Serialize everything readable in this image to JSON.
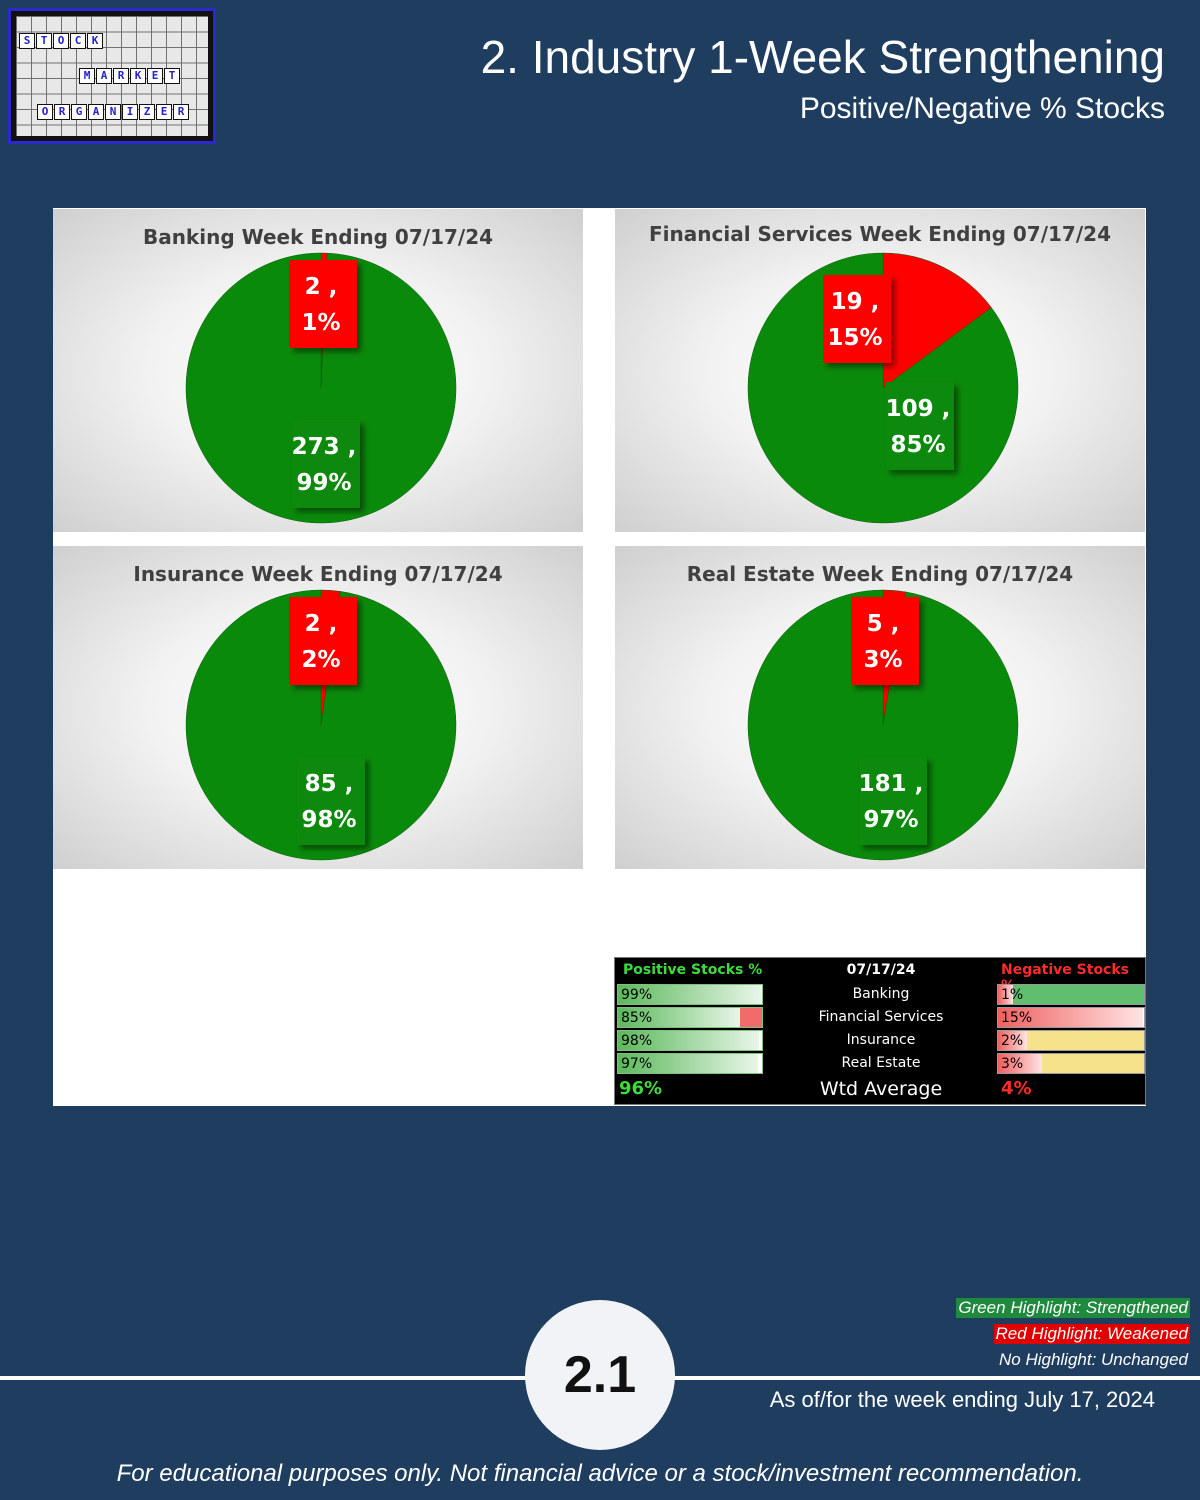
{
  "logo": {
    "word1": [
      "S",
      "T",
      "O",
      "C",
      "K"
    ],
    "word2": [
      "M",
      "A",
      "R",
      "K",
      "E",
      "T"
    ],
    "word3": [
      "O",
      "R",
      "G",
      "A",
      "N",
      "I",
      "Z",
      "E",
      "R"
    ]
  },
  "header": {
    "title": "2. Industry 1-Week Strengthening",
    "subtitle": "Positive/Negative % Stocks"
  },
  "colors": {
    "positive": "#0a8a0a",
    "negative": "#ff0000",
    "background": "#1e3d5f"
  },
  "chart_data": [
    {
      "type": "pie",
      "title": "Banking Week Ending 07/17/24",
      "slices": [
        {
          "label_line1": "2 ,",
          "label_line2": "1%",
          "count": 2,
          "pct": 1,
          "color": "#ff0000"
        },
        {
          "label_line1": "273 ,",
          "label_line2": "99%",
          "count": 273,
          "pct": 99,
          "color": "#0a8a0a"
        }
      ]
    },
    {
      "type": "pie",
      "title": "Financial Services Week Ending 07/17/24",
      "slices": [
        {
          "label_line1": "19 ,",
          "label_line2": "15%",
          "count": 19,
          "pct": 15,
          "color": "#ff0000"
        },
        {
          "label_line1": "109 ,",
          "label_line2": "85%",
          "count": 109,
          "pct": 85,
          "color": "#0a8a0a"
        }
      ]
    },
    {
      "type": "pie",
      "title": "Insurance Week Ending 07/17/24",
      "slices": [
        {
          "label_line1": "2 ,",
          "label_line2": "2%",
          "count": 2,
          "pct": 2,
          "color": "#ff0000"
        },
        {
          "label_line1": "85 ,",
          "label_line2": "98%",
          "count": 85,
          "pct": 98,
          "color": "#0a8a0a"
        }
      ]
    },
    {
      "type": "pie",
      "title": "Real Estate Week Ending 07/17/24",
      "slices": [
        {
          "label_line1": "5 ,",
          "label_line2": "3%",
          "count": 5,
          "pct": 3,
          "color": "#ff0000"
        },
        {
          "label_line1": "181 ,",
          "label_line2": "97%",
          "count": 181,
          "pct": 97,
          "color": "#0a8a0a"
        }
      ]
    }
  ],
  "summary_table": {
    "header_pos": "Positive Stocks %",
    "header_date": "07/17/24",
    "header_neg": "Negative Stocks %",
    "rows": [
      {
        "pos": "99%",
        "pos_value": 99,
        "name": "Banking",
        "neg": "1%",
        "neg_value": 1,
        "pos_status": "none",
        "neg_status": "strengthened"
      },
      {
        "pos": "85%",
        "pos_value": 85,
        "name": "Financial Services",
        "neg": "15%",
        "neg_value": 15,
        "pos_status": "weakened",
        "neg_status": "none"
      },
      {
        "pos": "98%",
        "pos_value": 98,
        "name": "Insurance",
        "neg": "2%",
        "neg_value": 2,
        "pos_status": "none",
        "neg_status": "unchanged-yellow"
      },
      {
        "pos": "97%",
        "pos_value": 97,
        "name": "Real Estate",
        "neg": "3%",
        "neg_value": 3,
        "pos_status": "none",
        "neg_status": "unchanged-yellow"
      }
    ],
    "avg_pos": "96%",
    "avg_label": "Wtd Average",
    "avg_neg": "4%"
  },
  "legend": {
    "green": "Green Highlight: Strengthened",
    "red": "Red Highlight: Weakened",
    "none": "No Highlight: Unchanged"
  },
  "badge": "2.1",
  "as_of": "As of/for the week ending July 17, 2024",
  "disclaimer": "For educational purposes only. Not financial advice or a stock/investment recommendation."
}
